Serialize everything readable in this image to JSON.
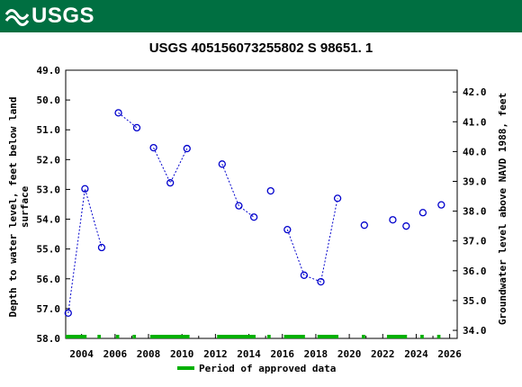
{
  "header": {
    "logo_text": "USGS",
    "brand_color": "#006f41"
  },
  "chart_data": {
    "type": "scatter",
    "title": "USGS 405156073255802 S 98651. 1",
    "ylabel_left_line1": "Depth to water level, feet below land",
    "ylabel_left_line2": "surface",
    "ylabel_right": "Groundwater level above NAVD 1988, feet",
    "x_tick_labels": [
      "2004",
      "2006",
      "2008",
      "2010",
      "2012",
      "2014",
      "2016",
      "2018",
      "2020",
      "2022",
      "2024",
      "2026"
    ],
    "x_tick_values": [
      2004,
      2006,
      2008,
      2010,
      2012,
      2014,
      2016,
      2018,
      2020,
      2022,
      2024,
      2026
    ],
    "xlim": [
      2003.05,
      2026.45
    ],
    "left_tick_labels": [
      "49.0",
      "50.0",
      "51.0",
      "52.0",
      "53.0",
      "54.0",
      "55.0",
      "56.0",
      "57.0",
      "58.0"
    ],
    "left_tick_values": [
      49,
      50,
      51,
      52,
      53,
      54,
      55,
      56,
      57,
      58
    ],
    "ylim_left": [
      49.0,
      58.0
    ],
    "right_tick_labels": [
      "34.0",
      "35.0",
      "36.0",
      "37.0",
      "38.0",
      "39.0",
      "40.0",
      "41.0",
      "42.0"
    ],
    "right_tick_values": [
      34,
      35,
      36,
      37,
      38,
      39,
      40,
      41,
      42
    ],
    "right_offset": 91.73,
    "series_color": "#0000cc",
    "points": [
      {
        "x": 2003.2,
        "y": 57.15
      },
      {
        "x": 2004.2,
        "y": 52.98
      },
      {
        "x": 2005.2,
        "y": 54.95
      },
      {
        "x": 2006.2,
        "y": 50.43
      },
      {
        "x": 2007.3,
        "y": 50.93
      },
      {
        "x": 2008.3,
        "y": 51.6
      },
      {
        "x": 2009.3,
        "y": 52.78
      },
      {
        "x": 2010.3,
        "y": 51.63
      },
      {
        "x": 2012.4,
        "y": 52.15
      },
      {
        "x": 2013.4,
        "y": 53.55
      },
      {
        "x": 2014.3,
        "y": 53.93
      },
      {
        "x": 2015.3,
        "y": 53.05
      },
      {
        "x": 2016.3,
        "y": 54.35
      },
      {
        "x": 2017.3,
        "y": 55.88
      },
      {
        "x": 2018.3,
        "y": 56.1
      },
      {
        "x": 2019.3,
        "y": 53.3
      },
      {
        "x": 2020.9,
        "y": 54.2
      },
      {
        "x": 2022.6,
        "y": 54.02
      },
      {
        "x": 2023.4,
        "y": 54.23
      },
      {
        "x": 2024.4,
        "y": 53.78
      },
      {
        "x": 2025.5,
        "y": 53.52
      }
    ],
    "line_segments": [
      [
        0,
        1,
        2
      ],
      [
        3,
        4
      ],
      [
        5,
        6,
        7
      ],
      [
        8,
        9,
        10
      ],
      [
        12,
        13,
        14,
        15
      ]
    ],
    "approved_periods": [
      [
        2003.05,
        2004.3
      ],
      [
        2004.95,
        2005.15
      ],
      [
        2006.05,
        2006.25
      ],
      [
        2007.05,
        2007.25
      ],
      [
        2008.1,
        2010.45
      ],
      [
        2012.1,
        2014.4
      ],
      [
        2015.1,
        2015.3
      ],
      [
        2016.1,
        2017.35
      ],
      [
        2018.1,
        2019.35
      ],
      [
        2020.75,
        2020.95
      ],
      [
        2022.25,
        2023.45
      ],
      [
        2024.25,
        2024.45
      ],
      [
        2025.25,
        2025.45
      ]
    ],
    "approved_color": "#00b000",
    "legend": {
      "label": "Period of approved data",
      "position": "bottom-center"
    }
  }
}
